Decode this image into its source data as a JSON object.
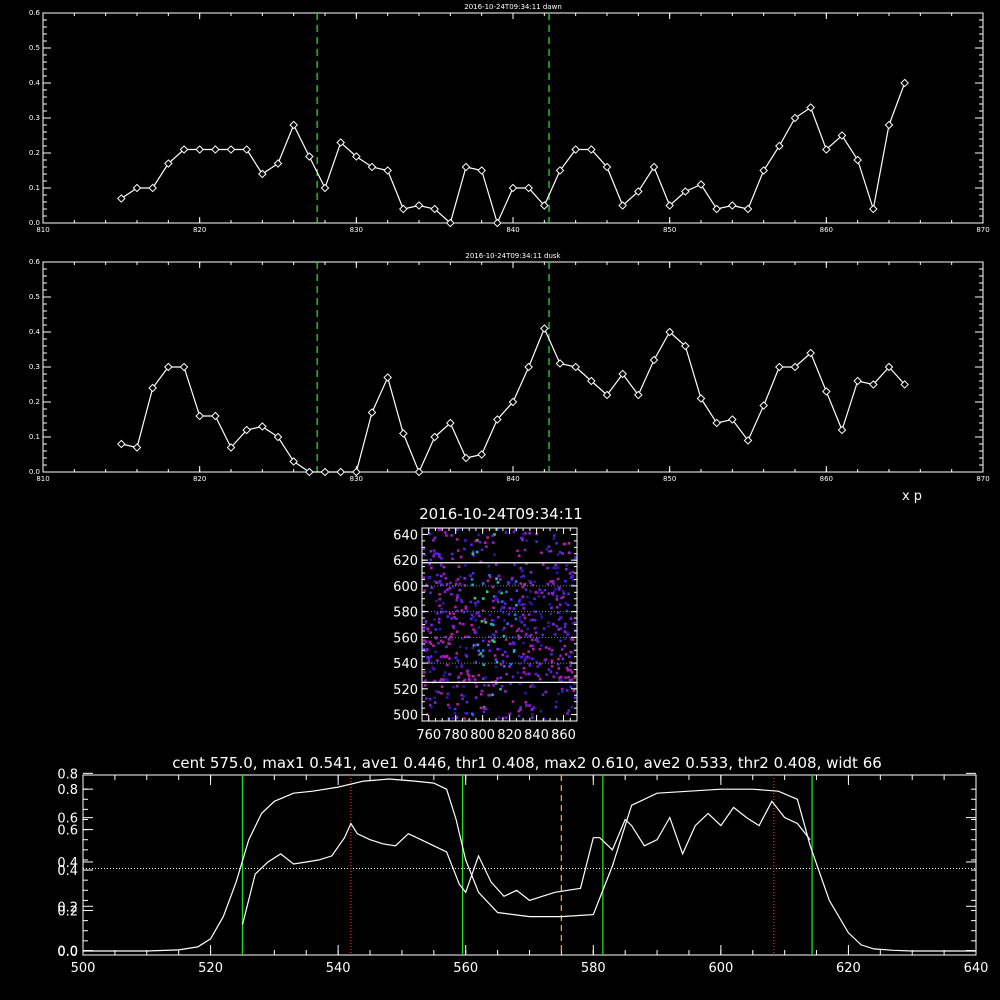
{
  "chart_data": [
    {
      "type": "line",
      "title": "2016-10-24T09:34:11 dawn",
      "xlim": [
        810,
        870
      ],
      "ylim": [
        0,
        0.6
      ],
      "xticks": [
        810,
        820,
        830,
        840,
        850,
        860,
        870
      ],
      "yticks": [
        0.0,
        0.1,
        0.2,
        0.3,
        0.4,
        0.5,
        0.6
      ],
      "marker": "diamond",
      "vlines": [
        827.5,
        842.3
      ],
      "x": [
        815,
        816,
        817,
        818,
        819,
        820,
        821,
        822,
        823,
        824,
        825,
        826,
        827,
        828,
        829,
        830,
        831,
        832,
        833,
        834,
        835,
        836,
        837,
        838,
        839,
        840,
        841,
        842,
        843,
        844,
        845,
        846,
        847,
        848,
        849,
        850,
        851,
        852,
        853,
        854,
        855,
        856,
        857,
        858,
        859,
        860,
        861,
        862,
        863,
        864,
        865
      ],
      "y": [
        0.07,
        0.1,
        0.1,
        0.17,
        0.21,
        0.21,
        0.21,
        0.21,
        0.21,
        0.14,
        0.17,
        0.28,
        0.19,
        0.1,
        0.23,
        0.19,
        0.16,
        0.15,
        0.04,
        0.05,
        0.04,
        0.0,
        0.16,
        0.15,
        0.0,
        0.1,
        0.1,
        0.05,
        0.15,
        0.21,
        0.21,
        0.16,
        0.05,
        0.09,
        0.16,
        0.05,
        0.09,
        0.11,
        0.04,
        0.05,
        0.04,
        0.15,
        0.22,
        0.3,
        0.33,
        0.21,
        0.25,
        0.18,
        0.04,
        0.28,
        0.4
      ]
    },
    {
      "type": "line",
      "title": "2016-10-24T09:34:11 dusk",
      "xlabel": "x p",
      "xlim": [
        810,
        870
      ],
      "ylim": [
        0,
        0.6
      ],
      "xticks": [
        810,
        820,
        830,
        840,
        850,
        860,
        870
      ],
      "yticks": [
        0.0,
        0.1,
        0.2,
        0.3,
        0.4,
        0.5,
        0.6
      ],
      "marker": "diamond",
      "vlines": [
        827.5,
        842.3
      ],
      "x": [
        815,
        816,
        817,
        818,
        819,
        820,
        821,
        822,
        823,
        824,
        825,
        826,
        827,
        828,
        829,
        830,
        831,
        832,
        833,
        834,
        835,
        836,
        837,
        838,
        839,
        840,
        841,
        842,
        843,
        844,
        845,
        846,
        847,
        848,
        849,
        850,
        851,
        852,
        853,
        854,
        855,
        856,
        857,
        858,
        859,
        860,
        861,
        862,
        863,
        864,
        865
      ],
      "y": [
        0.08,
        0.07,
        0.24,
        0.3,
        0.3,
        0.16,
        0.16,
        0.07,
        0.12,
        0.13,
        0.1,
        0.03,
        0.0,
        0.0,
        0.0,
        0.0,
        0.17,
        0.27,
        0.11,
        0.0,
        0.1,
        0.14,
        0.04,
        0.05,
        0.15,
        0.2,
        0.3,
        0.41,
        0.31,
        0.3,
        0.26,
        0.22,
        0.28,
        0.22,
        0.32,
        0.4,
        0.36,
        0.21,
        0.14,
        0.15,
        0.09,
        0.19,
        0.3,
        0.3,
        0.34,
        0.23,
        0.12,
        0.26,
        0.25,
        0.3,
        0.25
      ]
    },
    {
      "type": "heatmap",
      "title": "2016-10-24T09:34:11",
      "xlim": [
        755,
        870
      ],
      "ylim": [
        495,
        645
      ],
      "xticks": [
        760,
        780,
        800,
        820,
        840,
        860
      ],
      "yticks": [
        500,
        520,
        540,
        560,
        580,
        600,
        620,
        640
      ],
      "hlines_solid": [
        525,
        618
      ],
      "hlines_dotted": [
        540,
        560,
        580,
        600
      ],
      "palette": [
        "#2a1aa0",
        "#5a1fe0",
        "#8a1fd0",
        "#b01fa0",
        "#20b0c0",
        "#30d060",
        "#2070ff"
      ]
    },
    {
      "type": "line",
      "title": "cent 575.0, max1 0.541, ave1 0.446, thr1 0.408, max2 0.610, ave2 0.533, thr2 0.408, widt 66",
      "xlim": [
        500,
        640
      ],
      "ylim": [
        -0.02,
        0.87
      ],
      "xticks": [
        500,
        520,
        540,
        560,
        580,
        600,
        620,
        640
      ],
      "yticks_left": [
        0.0,
        0.2,
        0.4,
        0.6,
        0.8
      ],
      "yticks_left_alt": [
        0.0,
        0.2,
        0.4,
        0.6,
        0.8
      ],
      "hline": 0.408,
      "green_vlines": [
        525,
        559.5,
        581.5,
        614.3
      ],
      "red_vlines": [
        542,
        608.3
      ],
      "orange_vline": 575,
      "series": [
        {
          "x": [
            500,
            510,
            515,
            518,
            520,
            522,
            524,
            526,
            528,
            530,
            533,
            536,
            540,
            544,
            548,
            552,
            555,
            557,
            558.5,
            560,
            562,
            565,
            570,
            575,
            580,
            583,
            586,
            590,
            595,
            600,
            605,
            609,
            612,
            614,
            617,
            620,
            622,
            624,
            627,
            630,
            640
          ],
          "y": [
            0.0,
            0.0,
            0.005,
            0.02,
            0.06,
            0.17,
            0.34,
            0.55,
            0.68,
            0.74,
            0.78,
            0.79,
            0.81,
            0.84,
            0.85,
            0.84,
            0.83,
            0.8,
            0.65,
            0.45,
            0.29,
            0.19,
            0.17,
            0.17,
            0.18,
            0.42,
            0.72,
            0.78,
            0.79,
            0.8,
            0.8,
            0.79,
            0.75,
            0.52,
            0.25,
            0.09,
            0.03,
            0.01,
            0.003,
            0.0,
            0.0
          ]
        },
        {
          "x": [
            525,
            527,
            529,
            531,
            533,
            535,
            537,
            539,
            541,
            542,
            543,
            545,
            547,
            549,
            551,
            553,
            555,
            557,
            559,
            560,
            562,
            564,
            566,
            568,
            570,
            572,
            574,
            576,
            578,
            580,
            581,
            583,
            585,
            586,
            588,
            590,
            592,
            594,
            596,
            598,
            600,
            602,
            604,
            606,
            608,
            610,
            612,
            614
          ],
          "y": [
            0.13,
            0.38,
            0.44,
            0.48,
            0.43,
            0.44,
            0.45,
            0.47,
            0.56,
            0.63,
            0.58,
            0.55,
            0.53,
            0.52,
            0.58,
            0.55,
            0.52,
            0.49,
            0.33,
            0.29,
            0.47,
            0.34,
            0.27,
            0.3,
            0.25,
            0.27,
            0.29,
            0.3,
            0.31,
            0.56,
            0.56,
            0.5,
            0.65,
            0.62,
            0.52,
            0.55,
            0.66,
            0.48,
            0.62,
            0.68,
            0.62,
            0.71,
            0.66,
            0.62,
            0.74,
            0.66,
            0.63,
            0.55
          ]
        }
      ]
    }
  ]
}
